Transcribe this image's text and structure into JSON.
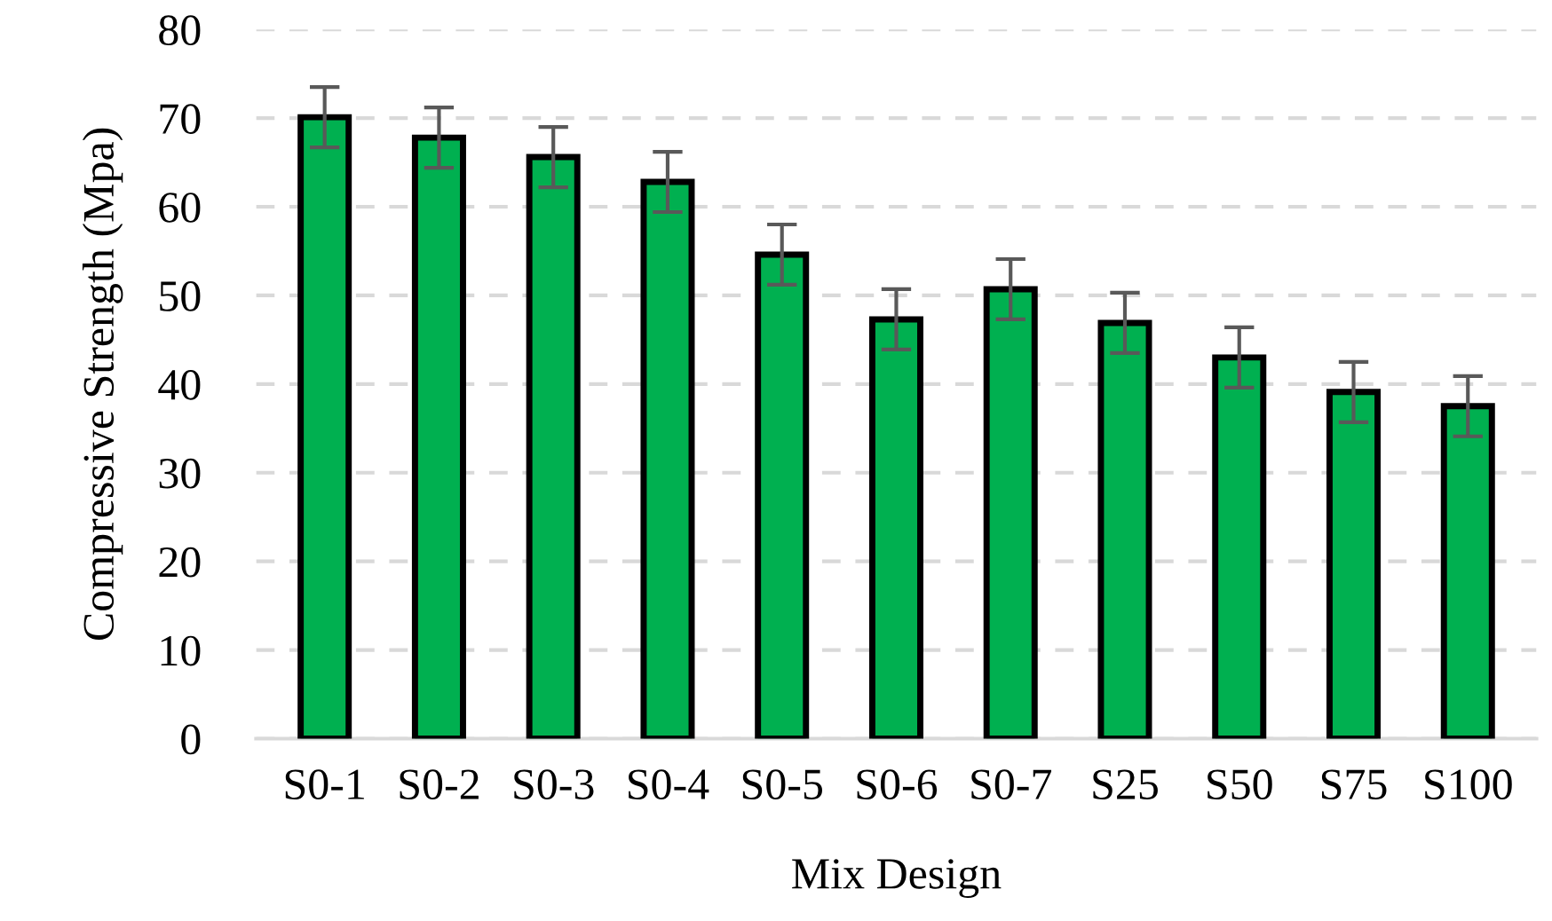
{
  "chart_data": {
    "type": "bar",
    "xlabel": "Mix Design",
    "ylabel": "Compressive Strength (Mpa)",
    "categories": [
      "S0-1",
      "S0-2",
      "S0-3",
      "S0-4",
      "S0-5",
      "S0-6",
      "S0-7",
      "S25",
      "S50",
      "S75",
      "S100"
    ],
    "values": [
      70.1,
      67.8,
      65.6,
      62.8,
      54.6,
      47.3,
      50.7,
      46.9,
      43.0,
      39.1,
      37.5
    ],
    "errors": [
      3.4,
      3.4,
      3.4,
      3.4,
      3.4,
      3.4,
      3.4,
      3.4,
      3.4,
      3.4,
      3.4
    ],
    "color": "#00b050",
    "ylim": [
      0,
      80
    ],
    "yticks": [
      0,
      10,
      20,
      30,
      40,
      50,
      60,
      70,
      80
    ],
    "grid": "y",
    "legend": false
  }
}
